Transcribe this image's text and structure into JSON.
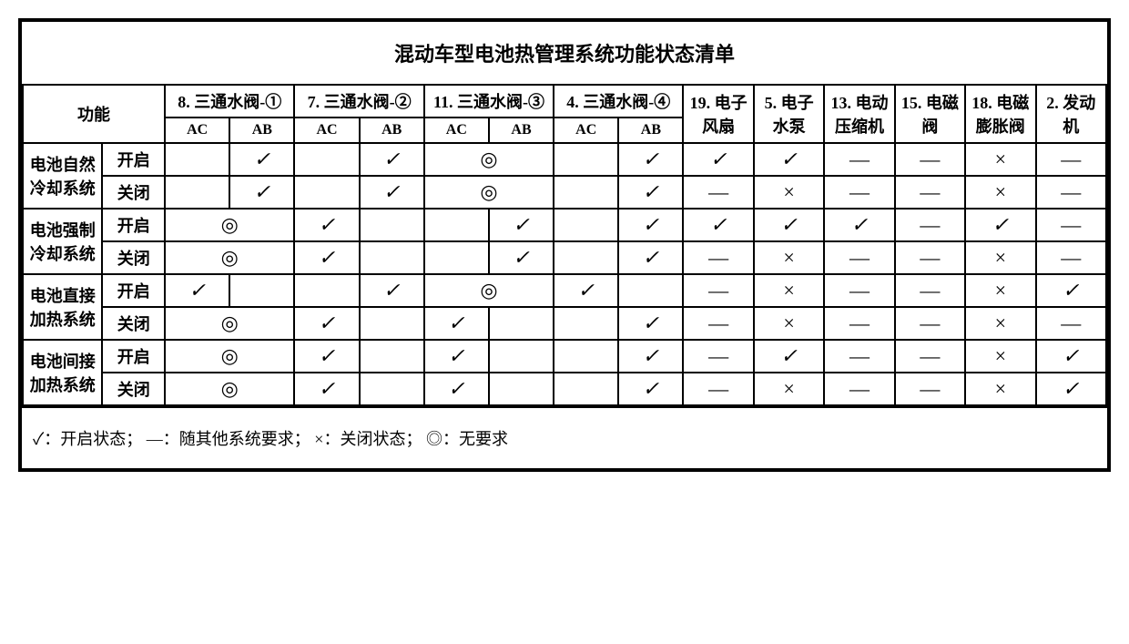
{
  "title": "混动车型电池热管理系统功能状态清单",
  "rowHeader": "功能",
  "subAC": "AC",
  "subAB": "AB",
  "valveHeaders": [
    "8. 三通水阀-①",
    "7. 三通水阀-②",
    "11. 三通水阀-③",
    "4. 三通水阀-④"
  ],
  "otherHeaders": [
    "19. 电子风扇",
    "5. 电子水泵",
    "13. 电动压缩机",
    "15. 电磁阀",
    "18. 电磁膨胀阀",
    "2. 发动机"
  ],
  "groups": [
    {
      "label": "电池自然冷却系统",
      "rows": [
        {
          "state": "开启",
          "cells": [
            "",
            "check",
            "",
            "check",
            "circle-span",
            null,
            "",
            "check",
            "check",
            "check",
            "dash",
            "dash",
            "x",
            "dash"
          ]
        },
        {
          "state": "关闭",
          "cells": [
            "",
            "check",
            "",
            "check",
            "circle-span",
            null,
            "",
            "check",
            "dash",
            "x",
            "dash",
            "dash",
            "x",
            "dash"
          ]
        }
      ]
    },
    {
      "label": "电池强制冷却系统",
      "rows": [
        {
          "state": "开启",
          "cells": [
            "circle-span",
            null,
            "check",
            "",
            "",
            "check",
            "",
            "check",
            "check",
            "check",
            "check",
            "dash",
            "check",
            "dash"
          ]
        },
        {
          "state": "关闭",
          "cells": [
            "circle-span",
            null,
            "check",
            "",
            "",
            "check",
            "",
            "check",
            "dash",
            "x",
            "dash",
            "dash",
            "x",
            "dash"
          ]
        }
      ]
    },
    {
      "label": "电池直接加热系统",
      "rows": [
        {
          "state": "开启",
          "cells": [
            "check-split",
            "",
            "",
            "check",
            "circle-span",
            null,
            "check",
            "",
            "dash",
            "x",
            "dash",
            "dash",
            "x",
            "check"
          ]
        },
        {
          "state": "关闭",
          "cells": [
            "circle-span",
            null,
            "check",
            "",
            "check",
            "",
            "",
            "check",
            "dash",
            "x",
            "dash",
            "dash",
            "x",
            "dash"
          ]
        }
      ]
    },
    {
      "label": "电池间接加热系统",
      "rows": [
        {
          "state": "开启",
          "cells": [
            "circle-span",
            null,
            "check",
            "",
            "check",
            "",
            "",
            "check",
            "dash",
            "check",
            "dash",
            "dash",
            "x",
            "check"
          ]
        },
        {
          "state": "关闭",
          "cells": [
            "circle-span",
            null,
            "check",
            "",
            "check",
            "",
            "",
            "check",
            "dash",
            "x",
            "dash",
            "dash",
            "x",
            "check"
          ]
        }
      ]
    }
  ],
  "legend": "✓：开启状态；  —：随其他系统要求；  ×：关闭状态；  ◎：无要求",
  "colors": {
    "border": "#000000",
    "bg": "#ffffff",
    "text": "#000000"
  }
}
